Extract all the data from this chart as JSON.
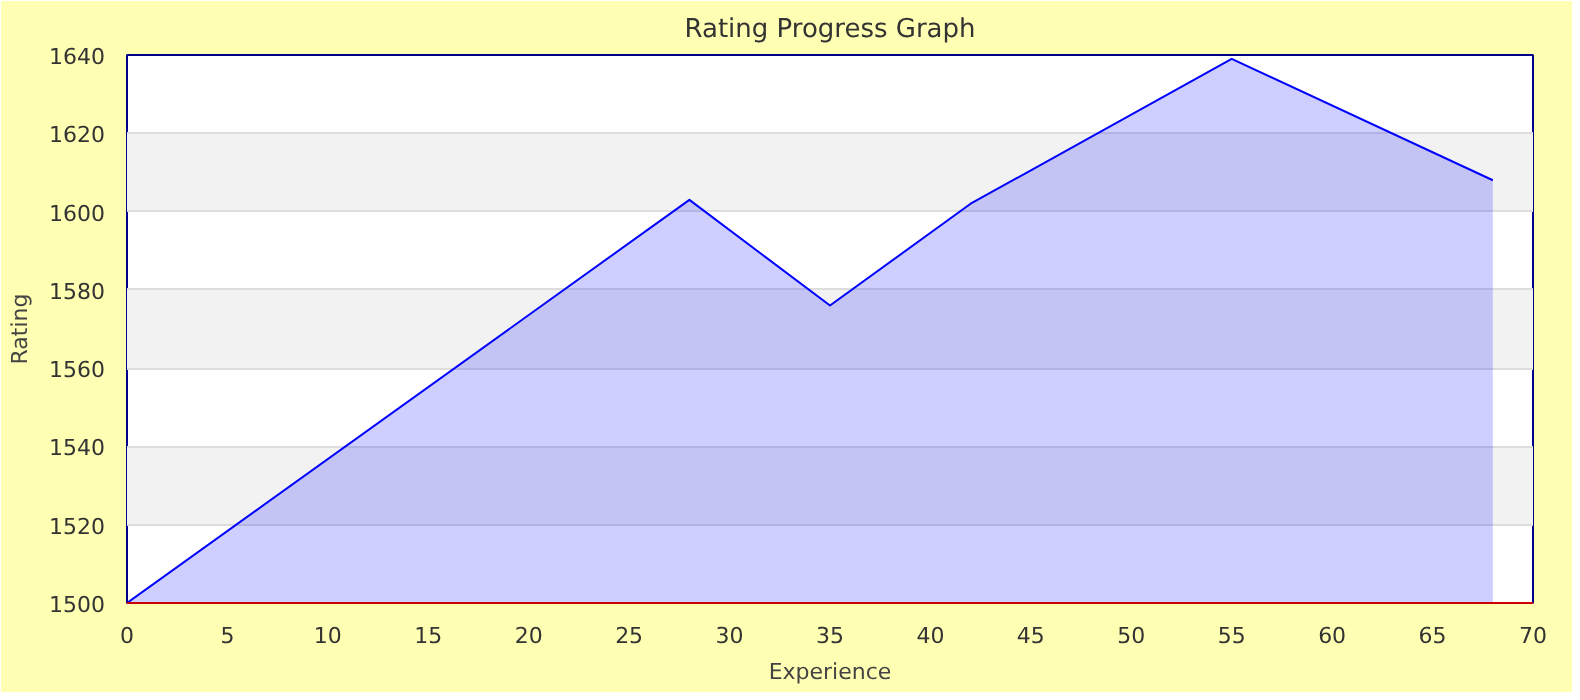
{
  "chart_data": {
    "type": "area",
    "title": "Rating Progress Graph",
    "xlabel": "Experience",
    "ylabel": "Rating",
    "x": [
      0,
      28,
      35,
      42,
      55,
      68
    ],
    "series": [
      {
        "color": "#0000ff",
        "values": [
          1500,
          1603,
          1576,
          1602,
          1639,
          1608
        ]
      }
    ],
    "xlim": [
      0,
      70
    ],
    "xticks": [
      0,
      5,
      10,
      15,
      20,
      25,
      30,
      35,
      40,
      45,
      50,
      55,
      60,
      65,
      70
    ],
    "ylim": [
      1500,
      1640
    ],
    "yticks": [
      1500,
      1520,
      1540,
      1560,
      1580,
      1600,
      1620,
      1640
    ],
    "grid": "y",
    "marker": "none",
    "line_style": "solid"
  }
}
